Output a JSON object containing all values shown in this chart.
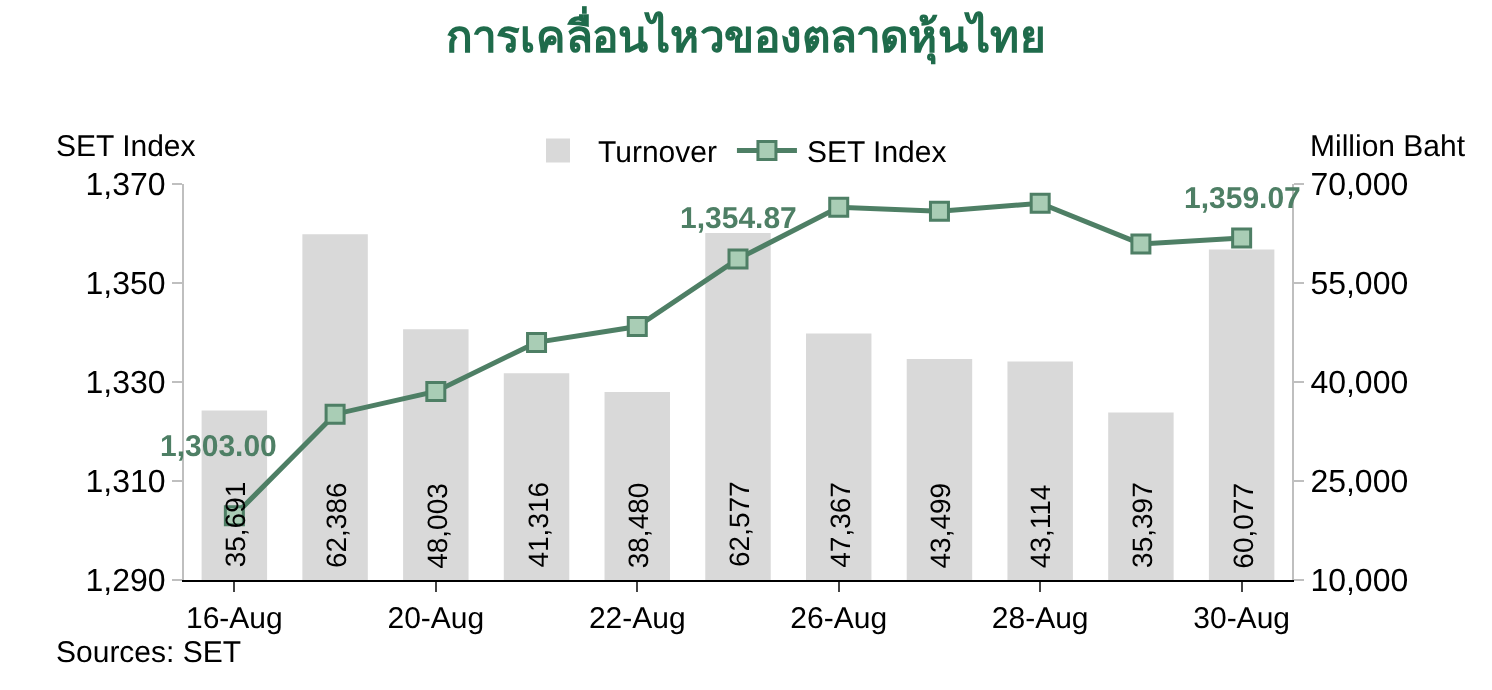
{
  "chart_data": {
    "type": "bar",
    "title": "การเคลื่อนไหวของตลาดหุ้นไทย",
    "ylabel": "SET Index",
    "y2label": "Million Baht",
    "categories": [
      "16-Aug",
      null,
      "20-Aug",
      null,
      "22-Aug",
      null,
      "26-Aug",
      null,
      "28-Aug",
      null,
      "30-Aug"
    ],
    "series": [
      {
        "name": "Turnover",
        "axis": "y2",
        "color": "#d9d9d9",
        "values": [
          35691,
          62386,
          48003,
          41316,
          38480,
          62577,
          47367,
          43499,
          43114,
          35397,
          60077
        ],
        "value_labels": [
          "35,691",
          "62,386",
          "48,003",
          "41,316",
          "38,480",
          "62,577",
          "47,367",
          "43,499",
          "43,114",
          "35,397",
          "60,077"
        ]
      },
      {
        "name": "SET Index",
        "type": "line",
        "color": "#4e7f65",
        "values": [
          1303.0,
          1323.5,
          1328.1,
          1338.0,
          1341.2,
          1354.87,
          1365.3,
          1364.5,
          1366.1,
          1357.9,
          1359.07
        ],
        "value_labels": [
          "1,303.00",
          null,
          null,
          null,
          null,
          "1,354.87",
          null,
          null,
          null,
          null,
          "1,359.07"
        ]
      }
    ],
    "ylim": [
      1290,
      1370
    ],
    "yticks": [
      {
        "value": 1290,
        "label": "1,290"
      },
      {
        "value": 1310,
        "label": "1,310"
      },
      {
        "value": 1330,
        "label": "1,330"
      },
      {
        "value": 1350,
        "label": "1,350"
      },
      {
        "value": 1370,
        "label": "1,370"
      }
    ],
    "y2lim": [
      10000,
      70000
    ],
    "y2ticks": [
      {
        "value": 10000,
        "label": "10,000"
      },
      {
        "value": 25000,
        "label": "25,000"
      },
      {
        "value": 40000,
        "label": "40,000"
      },
      {
        "value": 55000,
        "label": "55,000"
      },
      {
        "value": 70000,
        "label": "70,000"
      }
    ],
    "marker": "square",
    "line_style": "solid",
    "legend": "top",
    "annotations": [
      "Sources: SET"
    ]
  }
}
